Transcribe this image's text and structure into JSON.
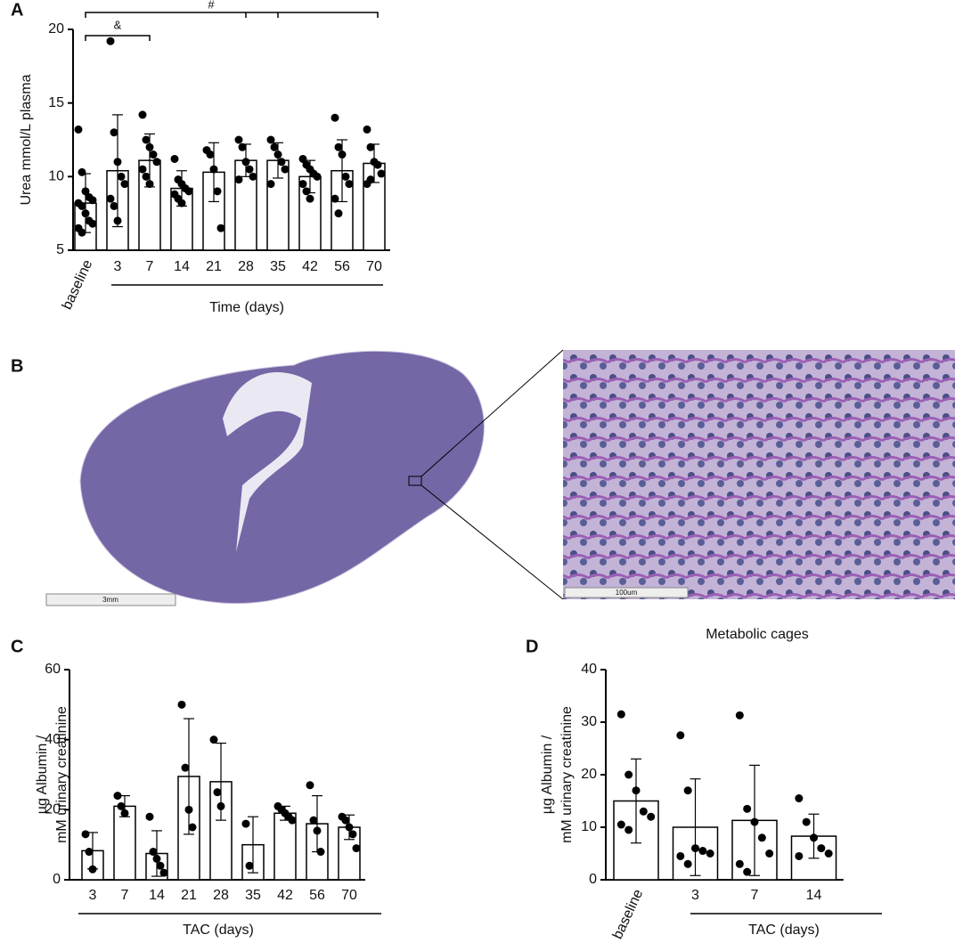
{
  "chart_data": [
    {
      "type": "bar",
      "label": "A",
      "y_label": [
        "Urea mmol/L plasma"
      ],
      "x_label": "Time (days)",
      "categories": [
        "baseline",
        "3",
        "7",
        "14",
        "21",
        "28",
        "35",
        "42",
        "56",
        "70"
      ],
      "values": [
        8.2,
        10.4,
        11.1,
        9.2,
        10.3,
        11.1,
        11.1,
        10.0,
        10.4,
        10.9
      ],
      "errors": [
        2.0,
        3.8,
        1.8,
        1.2,
        2.0,
        1.1,
        1.2,
        1.1,
        2.1,
        1.3
      ],
      "points": [
        [
          13.2,
          10.3,
          9.0,
          8.6,
          8.4,
          8.2,
          8.0,
          7.5,
          7.0,
          6.8,
          6.5,
          6.2
        ],
        [
          19.2,
          13.0,
          11.0,
          10.0,
          9.5,
          8.5,
          8.0,
          7.0
        ],
        [
          14.2,
          12.5,
          12.0,
          11.5,
          11.0,
          10.5,
          10.0,
          9.5
        ],
        [
          11.2,
          9.8,
          9.5,
          9.2,
          9.0,
          8.8,
          8.5,
          8.2
        ],
        [
          11.8,
          11.5,
          10.5,
          9.0,
          6.5
        ],
        [
          12.5,
          12.0,
          11.0,
          10.5,
          10.0,
          9.8
        ],
        [
          12.5,
          12.0,
          11.5,
          11.0,
          10.5,
          9.5
        ],
        [
          11.2,
          10.8,
          10.5,
          10.2,
          10.0,
          9.5,
          9.0,
          8.5
        ],
        [
          14.0,
          12.0,
          11.5,
          10.0,
          9.5,
          8.5,
          7.5
        ],
        [
          13.2,
          12.0,
          11.0,
          10.8,
          10.2,
          9.5,
          9.8
        ]
      ],
      "annotations": [
        "&",
        "#"
      ],
      "ylim": [
        5,
        20
      ],
      "yticks": [
        5,
        10,
        15,
        20
      ],
      "color": "#ffffff"
    },
    {
      "type": "bar",
      "label": "C",
      "y_label": [
        "µg Albumin /",
        "mM urinary creatinine"
      ],
      "x_label": "TAC (days)",
      "categories": [
        "3",
        "7",
        "14",
        "21",
        "28",
        "35",
        "42",
        "56",
        "70"
      ],
      "values": [
        8.3,
        21,
        7.5,
        29.5,
        28,
        10,
        19,
        16,
        15
      ],
      "errors": [
        5.2,
        3,
        6.5,
        16.5,
        11,
        8,
        2,
        8,
        3.5
      ],
      "points": [
        [
          13,
          8,
          3
        ],
        [
          24,
          21,
          19
        ],
        [
          18,
          8,
          6,
          4,
          2
        ],
        [
          50,
          32,
          20,
          15
        ],
        [
          40,
          25,
          21
        ],
        [
          16,
          4
        ],
        [
          21,
          20,
          19,
          18,
          17
        ],
        [
          27,
          17,
          14,
          8
        ],
        [
          18,
          17,
          15,
          13,
          9
        ]
      ],
      "ylim": [
        0,
        60
      ],
      "yticks": [
        0,
        20,
        40,
        60
      ],
      "color": "#ffffff"
    },
    {
      "type": "bar",
      "label": "D",
      "title": "Metabolic cages",
      "y_label": [
        "µg Albumin /",
        "mM urinary creatinine"
      ],
      "x_label": "TAC (days)",
      "categories": [
        "baseline",
        "3",
        "7",
        "14"
      ],
      "values": [
        15,
        10,
        11.3,
        8.3
      ],
      "errors": [
        8,
        9.2,
        10.5,
        4.2
      ],
      "points": [
        [
          31.5,
          20,
          17,
          13,
          12,
          10.5,
          9.5
        ],
        [
          27.5,
          17,
          6,
          5.5,
          5,
          4.5,
          3
        ],
        [
          31.3,
          13.5,
          11,
          8,
          5,
          3,
          1.5
        ],
        [
          15.5,
          11,
          8,
          6,
          5,
          4.5
        ]
      ],
      "ylim": [
        0,
        40
      ],
      "yticks": [
        0,
        10,
        20,
        30,
        40
      ],
      "color": "#ffffff"
    }
  ],
  "panel_b": {
    "label": "B",
    "scale_bar_left": "3mm",
    "scale_bar_right": "100um"
  }
}
